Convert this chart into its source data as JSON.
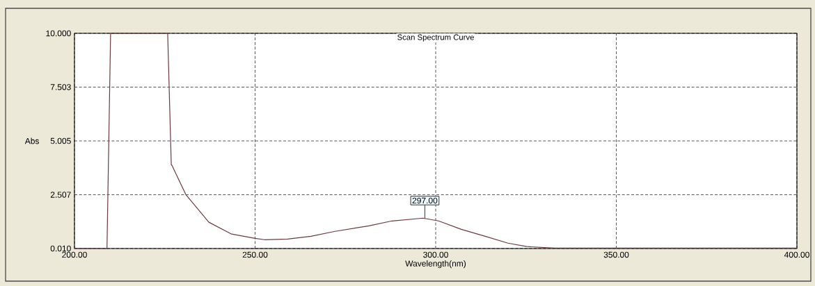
{
  "chart_data": {
    "type": "line",
    "title": "Scan Spectrum Curve",
    "xlabel": "Wavelength(nm)",
    "ylabel": "Abs",
    "x": [
      200,
      209,
      210,
      225.8,
      226.8,
      227,
      230.8,
      237.2,
      243.5,
      250,
      252.6,
      259,
      265.5,
      271.9,
      281.5,
      287.9,
      296.5,
      300.8,
      307.1,
      313.7,
      320,
      325.2,
      333,
      400
    ],
    "series": [
      {
        "color": "#6b3a40",
        "values": [
          0.01,
          0.01,
          10.0,
          10.0,
          3.9,
          3.87,
          2.52,
          1.23,
          0.68,
          0.48,
          0.42,
          0.45,
          0.58,
          0.8,
          1.06,
          1.29,
          1.42,
          1.29,
          0.9,
          0.58,
          0.26,
          0.1,
          0.03,
          0.03
        ]
      }
    ],
    "xlim": [
      200,
      400
    ],
    "ylim": [
      0.01,
      10.0
    ],
    "xticks": [
      {
        "value": 200,
        "label": "200.00"
      },
      {
        "value": 250,
        "label": "250.00"
      },
      {
        "value": 300,
        "label": "300.00"
      },
      {
        "value": 350,
        "label": "350.00"
      },
      {
        "value": 400,
        "label": "400.00"
      }
    ],
    "yticks": [
      {
        "value": 0.01,
        "label": "0.010"
      },
      {
        "value": 2.507,
        "label": "2.507"
      },
      {
        "value": 5.005,
        "label": "5.005"
      },
      {
        "value": 7.503,
        "label": "7.503"
      },
      {
        "value": 10.0,
        "label": "10.000"
      }
    ],
    "grid": true,
    "annotations": [
      {
        "text": "297.00",
        "x": 297,
        "y": 1.42
      }
    ]
  }
}
